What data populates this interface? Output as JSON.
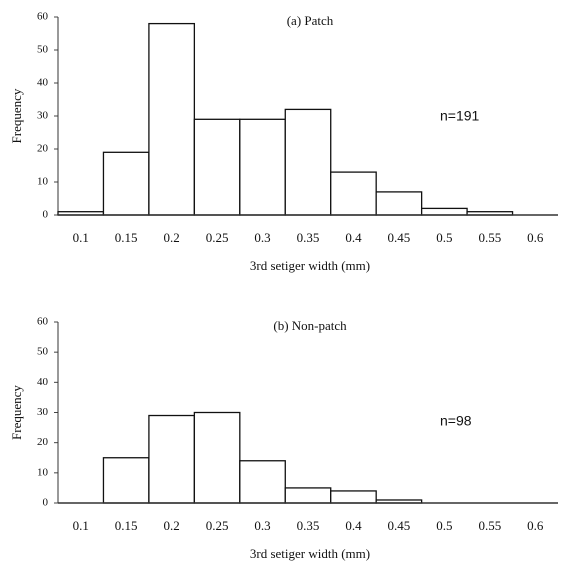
{
  "chart_data": [
    {
      "type": "histogram",
      "title": "(a) Patch",
      "xlabel": "3rd setiger width (mm)",
      "ylabel": "Frequency",
      "annotation": "n=191",
      "bins": [
        0.075,
        0.125,
        0.175,
        0.225,
        0.275,
        0.325,
        0.375,
        0.425,
        0.475,
        0.525,
        0.575
      ],
      "values": [
        1,
        19,
        58,
        29,
        29,
        32,
        13,
        7,
        2,
        1
      ],
      "color": "#ffffff",
      "xlim": [
        0.075,
        0.625
      ],
      "xticks": [
        0.1,
        0.15,
        0.2,
        0.25,
        0.3,
        0.35,
        0.4,
        0.45,
        0.5,
        0.55,
        0.6
      ],
      "ylim": [
        0,
        60
      ],
      "yticks": [
        0,
        10,
        20,
        30,
        40,
        50,
        60
      ]
    },
    {
      "type": "histogram",
      "title": "(b) Non-patch",
      "xlabel": "3rd setiger width (mm)",
      "ylabel": "Frequency",
      "annotation": "n=98",
      "bins": [
        0.075,
        0.125,
        0.175,
        0.225,
        0.275,
        0.325,
        0.375,
        0.425,
        0.475,
        0.525,
        0.575
      ],
      "values": [
        0,
        15,
        29,
        30,
        14,
        5,
        4,
        1,
        0,
        0
      ],
      "color": "#ffffff",
      "xlim": [
        0.075,
        0.625
      ],
      "xticks": [
        0.1,
        0.15,
        0.2,
        0.25,
        0.3,
        0.35,
        0.4,
        0.45,
        0.5,
        0.55,
        0.6
      ],
      "ylim": [
        0,
        60
      ],
      "yticks": [
        0,
        10,
        20,
        30,
        40,
        50,
        60
      ]
    }
  ]
}
